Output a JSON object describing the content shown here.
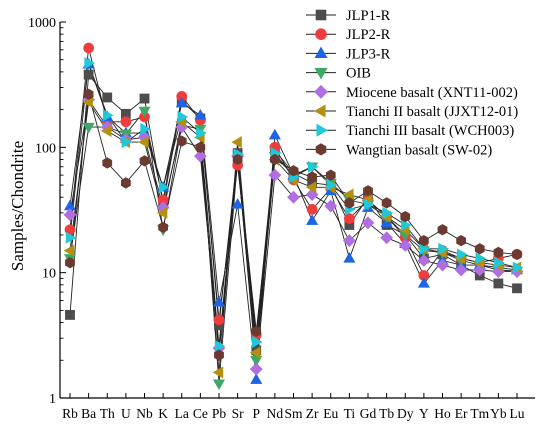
{
  "chart_data": {
    "type": "line",
    "title": "",
    "xlabel": "",
    "ylabel": "Samples/Chondrite",
    "y_scale": "log",
    "ylim": [
      1,
      1000
    ],
    "y_ticks": [
      1,
      10,
      100,
      1000
    ],
    "y_tick_labels": [
      "1",
      "10",
      "100",
      "1000"
    ],
    "grid": false,
    "legend_position": "top-right",
    "categories": [
      "Rb",
      "Ba",
      "Th",
      "U",
      "Nb",
      "K",
      "La",
      "Ce",
      "Pb",
      "Sr",
      "P",
      "Nd",
      "Sm",
      "Zr",
      "Eu",
      "Ti",
      "Gd",
      "Tb",
      "Dy",
      "Y",
      "Ho",
      "Er",
      "Tm",
      "Yb",
      "Lu"
    ],
    "series": [
      {
        "name": "JLP1-R",
        "color": "#4d4d4d",
        "marker": "square",
        "values": [
          4.6,
          380,
          250,
          185,
          245,
          35,
          235,
          170,
          3.8,
          90,
          2.4,
          95,
          62,
          52,
          50,
          24,
          40,
          24,
          20,
          13,
          14,
          11.5,
          9.5,
          8.2,
          7.5
        ]
      },
      {
        "name": "JLP2-R",
        "color": "#f03c3c",
        "marker": "circle",
        "values": [
          22,
          620,
          160,
          160,
          175,
          38,
          255,
          165,
          4.2,
          72,
          3.2,
          100,
          55,
          32,
          47,
          27,
          38,
          28,
          19,
          9.5,
          15,
          13,
          12,
          13,
          14
        ]
      },
      {
        "name": "JLP3-R",
        "color": "#1e64e6",
        "marker": "triangle-up",
        "values": [
          34,
          460,
          175,
          130,
          130,
          48,
          225,
          180,
          5.8,
          35,
          1.4,
          125,
          60,
          26,
          45,
          13,
          33,
          25,
          17,
          8.2,
          12.5,
          11.5,
          11.5,
          11,
          10.5
        ]
      },
      {
        "name": "OIB",
        "color": "#3caa64",
        "marker": "triangle-down",
        "values": [
          13,
          145,
          145,
          128,
          195,
          22,
          150,
          140,
          1.3,
          80,
          2.0,
          85,
          60,
          70,
          52,
          38,
          35,
          28,
          20,
          15,
          14.5,
          12.5,
          11.5,
          10.5,
          10.3
        ]
      },
      {
        "name": "Miocene basalt (XNT11-002)",
        "color": "#b06ee0",
        "marker": "diamond",
        "values": [
          29,
          240,
          145,
          115,
          120,
          33,
          145,
          85,
          2.5,
          85,
          1.7,
          60,
          40,
          42,
          34,
          18,
          25,
          19,
          16.5,
          12.5,
          11.5,
          10.5,
          10.5,
          10.2,
          10.2
        ]
      },
      {
        "name": "Tianchi II basalt (JJXT12-01)",
        "color": "#b49010",
        "marker": "triangle-left",
        "values": [
          15,
          230,
          135,
          110,
          110,
          30,
          160,
          120,
          1.6,
          110,
          2.3,
          80,
          55,
          48,
          48,
          42,
          38,
          28,
          22,
          15.5,
          14.5,
          13,
          12,
          11.5,
          11
        ]
      },
      {
        "name": "Tianchi III basalt (WCH003)",
        "color": "#20c8d8",
        "marker": "triangle-right",
        "values": [
          19,
          470,
          180,
          110,
          140,
          48,
          175,
          130,
          2.6,
          88,
          2.8,
          90,
          58,
          70,
          50,
          32,
          35,
          30,
          24,
          15.5,
          15.5,
          14,
          13,
          12,
          11
        ]
      },
      {
        "name": "Wangtian basalt (SW-02)",
        "color": "#6b3a30",
        "marker": "hexagon",
        "values": [
          12,
          265,
          75,
          52,
          78,
          23,
          112,
          100,
          2.2,
          80,
          3.4,
          80,
          65,
          58,
          60,
          36,
          45,
          36,
          28,
          18,
          22,
          18,
          15.5,
          14.5,
          14
        ]
      }
    ]
  }
}
